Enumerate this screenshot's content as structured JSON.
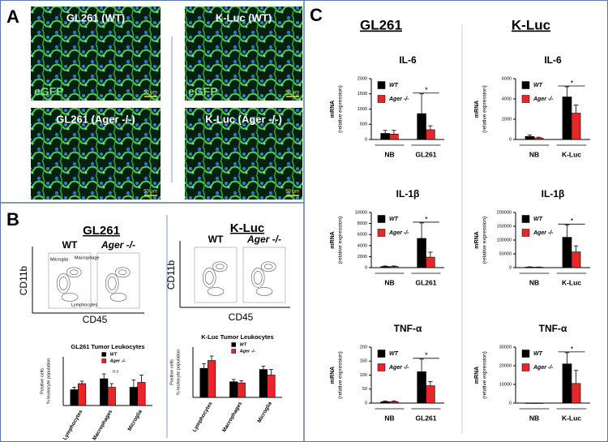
{
  "panels": {
    "A": {
      "label": "A",
      "images": [
        {
          "title": "GL261 (WT)",
          "channel": "eGFP",
          "scale": "50 µm"
        },
        {
          "title": "K-Luc (WT)",
          "channel": "eGFP",
          "scale": "50 µm"
        },
        {
          "title": "GL261 (Ager -/-)",
          "scale": "50 µm"
        },
        {
          "title": "K-Luc (Ager -/-)",
          "scale": "50 µm"
        }
      ]
    },
    "B": {
      "label": "B",
      "flow": [
        {
          "title": "GL261",
          "plots": [
            "WT",
            "Ager -/-"
          ],
          "y_label": "CD11b",
          "x_label": "CD45",
          "gates": [
            "Microglia",
            "Macrophage",
            "Lymphocytes"
          ]
        },
        {
          "title": "K-Luc",
          "plots": [
            "WT",
            "Ager -/-"
          ],
          "y_label": "CD11b",
          "x_label": "CD45"
        }
      ]
    },
    "C": {
      "label": "C",
      "columns": [
        "GL261",
        "K-Luc"
      ]
    }
  },
  "chart_data": [
    {
      "type": "bar",
      "title": "GL261 Tumor Leukocytes",
      "ylabel": "Positive cells",
      "ylabel2": "% leukocyte population",
      "categories": [
        "Lymphocytes",
        "Macrophages",
        "Microglia"
      ],
      "series": [
        {
          "name": "WT",
          "color": "#000000",
          "values": [
            13,
            22,
            15
          ],
          "errors": [
            2,
            4,
            6
          ]
        },
        {
          "name": "Ager -/-",
          "color": "#e8262a",
          "values": [
            18,
            15,
            19
          ],
          "errors": [
            2,
            3,
            6
          ]
        }
      ],
      "ylim": [
        0,
        40
      ],
      "annotations": [
        "n.s"
      ]
    },
    {
      "type": "bar",
      "title": "K-Luc Tumor Leukocytes",
      "ylabel": "Positive cells",
      "ylabel2": "% leukocyte population",
      "categories": [
        "Lymphocytes",
        "Macrophages",
        "Microglia"
      ],
      "series": [
        {
          "name": "WT",
          "color": "#000000",
          "values": [
            26,
            14,
            25
          ],
          "errors": [
            4,
            2,
            3
          ]
        },
        {
          "name": "Ager -/-",
          "color": "#e8262a",
          "values": [
            33,
            13,
            20
          ],
          "errors": [
            4,
            2,
            5
          ]
        }
      ],
      "ylim": [
        0,
        45
      ]
    },
    {
      "type": "bar",
      "title": "IL-6",
      "ylabel": "mRNA",
      "ylabel2": "(relative expression)",
      "categories": [
        "NB",
        "GL261"
      ],
      "series": [
        {
          "name": "WT",
          "color": "#000000",
          "values": [
            200,
            850
          ],
          "errors": [
            100,
            650
          ]
        },
        {
          "name": "Ager -/-",
          "color": "#e8262a",
          "values": [
            180,
            320
          ],
          "errors": [
            120,
            130
          ]
        }
      ],
      "ylim": [
        0,
        2000
      ],
      "yticks": [
        0,
        500,
        1000,
        1500,
        2000
      ],
      "annotations": [
        "*"
      ]
    },
    {
      "type": "bar",
      "title": "IL-6",
      "ylabel": "mRNA",
      "ylabel2": "(relative expression)",
      "categories": [
        "NB",
        "K-Luc"
      ],
      "series": [
        {
          "name": "WT",
          "color": "#000000",
          "values": [
            300,
            4200
          ],
          "errors": [
            150,
            1000
          ]
        },
        {
          "name": "Ager -/-",
          "color": "#e8262a",
          "values": [
            150,
            2600
          ],
          "errors": [
            80,
            800
          ]
        }
      ],
      "ylim": [
        0,
        6000
      ],
      "yticks": [
        0,
        2000,
        4000,
        6000
      ],
      "annotations": [
        "*"
      ]
    },
    {
      "type": "bar",
      "title": "IL-1β",
      "ylabel": "mRNA",
      "ylabel2": "(relative expression)",
      "categories": [
        "NB",
        "GL261"
      ],
      "series": [
        {
          "name": "WT",
          "color": "#000000",
          "values": [
            200,
            5300
          ],
          "errors": [
            100,
            2800
          ]
        },
        {
          "name": "Ager -/-",
          "color": "#e8262a",
          "values": [
            200,
            1900
          ],
          "errors": [
            100,
            900
          ]
        }
      ],
      "ylim": [
        0,
        10000
      ],
      "yticks": [
        0,
        2000,
        4000,
        6000,
        8000,
        10000
      ],
      "annotations": [
        "*"
      ]
    },
    {
      "type": "bar",
      "title": "IL-1β",
      "ylabel": "mRNA",
      "ylabel2": "(relative expression)",
      "categories": [
        "NB",
        "K-Luc"
      ],
      "series": [
        {
          "name": "WT",
          "color": "#000000",
          "values": [
            2000,
            110000
          ],
          "errors": [
            1000,
            45000
          ]
        },
        {
          "name": "Ager -/-",
          "color": "#e8262a",
          "values": [
            1500,
            57000
          ],
          "errors": [
            800,
            22000
          ]
        }
      ],
      "ylim": [
        0,
        200000
      ],
      "yticks": [
        0,
        50000,
        100000,
        150000,
        200000
      ],
      "annotations": [
        "*"
      ]
    },
    {
      "type": "bar",
      "title": "TNF-α",
      "ylabel": "mRNA",
      "ylabel2": "(relative expression)",
      "categories": [
        "NB",
        "GL261"
      ],
      "series": [
        {
          "name": "WT",
          "color": "#000000",
          "values": [
            5,
            112
          ],
          "errors": [
            3,
            45
          ]
        },
        {
          "name": "Ager -/-",
          "color": "#e8262a",
          "values": [
            5,
            62
          ],
          "errors": [
            3,
            15
          ]
        }
      ],
      "ylim": [
        0,
        200
      ],
      "yticks": [
        0,
        50,
        100,
        150,
        200
      ],
      "annotations": [
        "*"
      ]
    },
    {
      "type": "bar",
      "title": "TNF-α",
      "ylabel": "mRNA",
      "ylabel2": "(relative expression)",
      "categories": [
        "NB",
        "K-Luc"
      ],
      "series": [
        {
          "name": "WT",
          "color": "#000000",
          "values": [
            0,
            21000
          ],
          "errors": [
            0,
            6000
          ]
        },
        {
          "name": "Ager -/-",
          "color": "#e8262a",
          "values": [
            0,
            10500
          ],
          "errors": [
            0,
            7000
          ]
        }
      ],
      "ylim": [
        0,
        30000
      ],
      "yticks": [
        0,
        10000,
        20000,
        30000
      ],
      "annotations": [
        "*"
      ]
    }
  ]
}
